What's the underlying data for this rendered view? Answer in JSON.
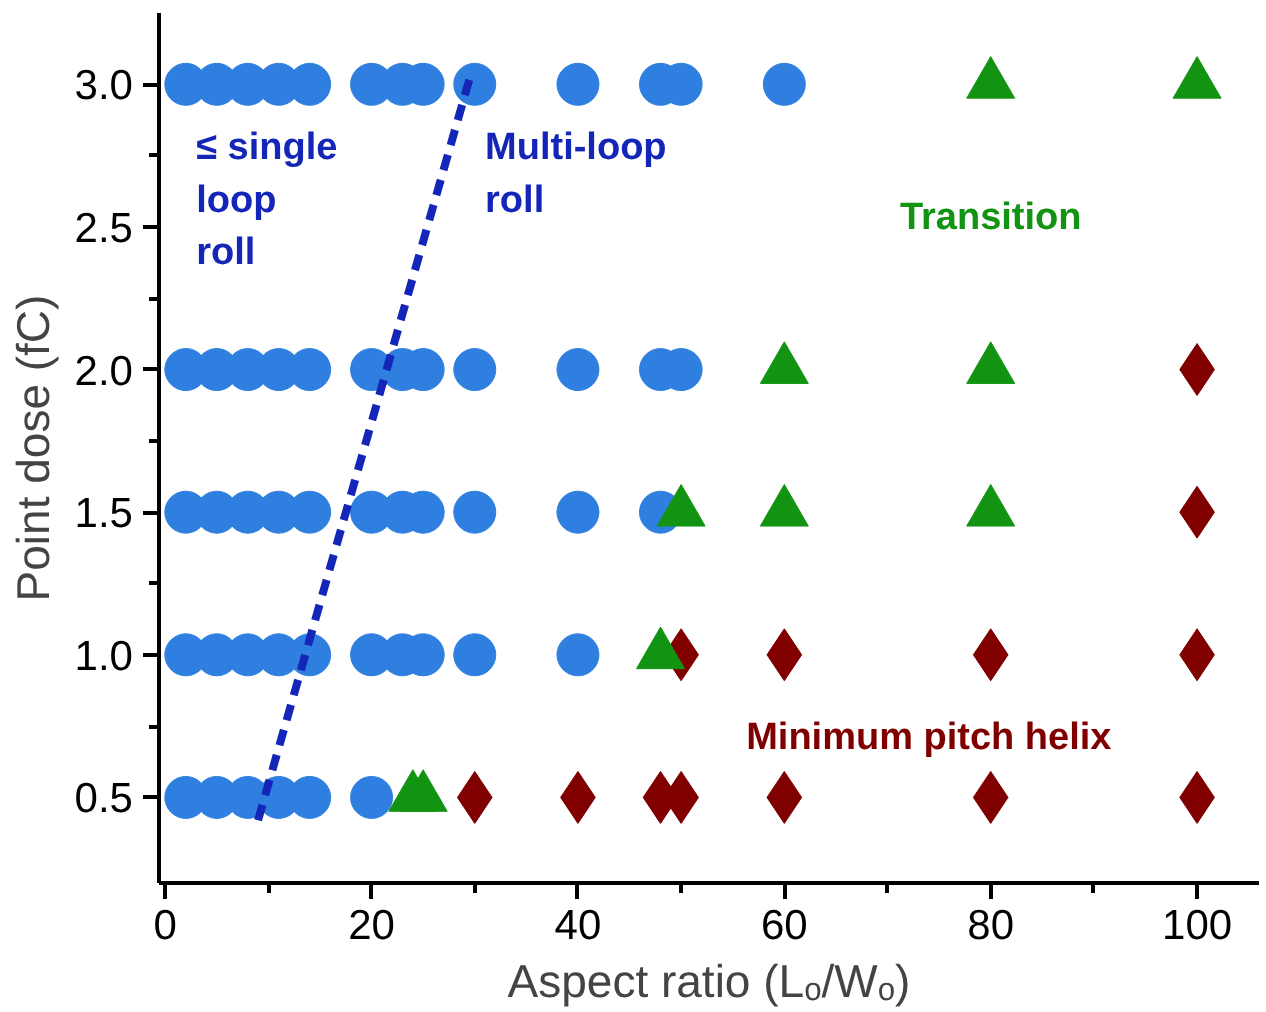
{
  "chart_data": {
    "type": "scatter",
    "xlabel": "Aspect ratio (Lₒ/Wₒ)",
    "ylabel": "Point dose (fC)",
    "xlim": [
      -0.6,
      106
    ],
    "ylim": [
      0.2,
      3.25
    ],
    "xticks": [
      0,
      {
        "value": 10,
        "label": null
      },
      20,
      {
        "value": 30,
        "label": null
      },
      40,
      {
        "value": 50,
        "label": null
      },
      60,
      {
        "value": 70,
        "label": null
      },
      80,
      {
        "value": 90,
        "label": null
      },
      100
    ],
    "yticks": [
      {
        "value": 0.5,
        "label": "0.5"
      },
      {
        "value": 0.75,
        "label": null
      },
      {
        "value": 1,
        "label": "1.0"
      },
      {
        "value": 1.25,
        "label": null
      },
      {
        "value": 1.5,
        "label": "1.5"
      },
      {
        "value": 1.75,
        "label": null
      },
      {
        "value": 2,
        "label": "2.0"
      },
      {
        "value": 2.25,
        "label": null
      },
      {
        "value": 2.5,
        "label": "2.5"
      },
      {
        "value": 2.75,
        "label": null
      },
      {
        "value": 3,
        "label": "3.0"
      }
    ],
    "grid": false,
    "series": [
      {
        "marker": "circle",
        "color": "#2f7fe0",
        "x": [
          2,
          5,
          8,
          11,
          14,
          20,
          23,
          25,
          30,
          40,
          48,
          50,
          60,
          2,
          5,
          8,
          11,
          14,
          20,
          23,
          25,
          30,
          40,
          48,
          50,
          2,
          5,
          8,
          11,
          14,
          20,
          23,
          25,
          30,
          40,
          48,
          2,
          5,
          8,
          11,
          14,
          20,
          23,
          25,
          30,
          40,
          2,
          5,
          8,
          11,
          14,
          20
        ],
        "values": [
          3,
          3,
          3,
          3,
          3,
          3,
          3,
          3,
          3,
          3,
          3,
          3,
          3,
          2,
          2,
          2,
          2,
          2,
          2,
          2,
          2,
          2,
          2,
          2,
          2,
          1.5,
          1.5,
          1.5,
          1.5,
          1.5,
          1.5,
          1.5,
          1.5,
          1.5,
          1.5,
          1.5,
          1,
          1,
          1,
          1,
          1,
          1,
          1,
          1,
          1,
          1,
          0.5,
          0.5,
          0.5,
          0.5,
          0.5,
          0.5
        ]
      },
      {
        "marker": "diamond",
        "color": "#800000",
        "x": [
          100,
          100,
          50,
          60,
          80,
          100,
          30,
          40,
          48,
          50,
          60,
          80,
          100
        ],
        "values": [
          2,
          1.5,
          1,
          1,
          1,
          1,
          0.5,
          0.5,
          0.5,
          0.5,
          0.5,
          0.5,
          0.5
        ]
      },
      {
        "marker": "triangle",
        "color": "#129412",
        "x": [
          80,
          100,
          60,
          80,
          50,
          60,
          80,
          48,
          24,
          25
        ],
        "values": [
          3,
          3,
          2,
          2,
          1.5,
          1.5,
          1.5,
          1,
          0.5,
          0.5
        ]
      },
      {
        "type": "line",
        "line_style": "dashed",
        "color": "#1426b8",
        "x": [
          9,
          29.5
        ],
        "values": [
          0.42,
          3.02
        ]
      }
    ],
    "annotations": [
      "≤ single\nloop\nroll",
      "Multi-loop\nroll",
      "Transition",
      "Minimum pitch helix"
    ]
  }
}
